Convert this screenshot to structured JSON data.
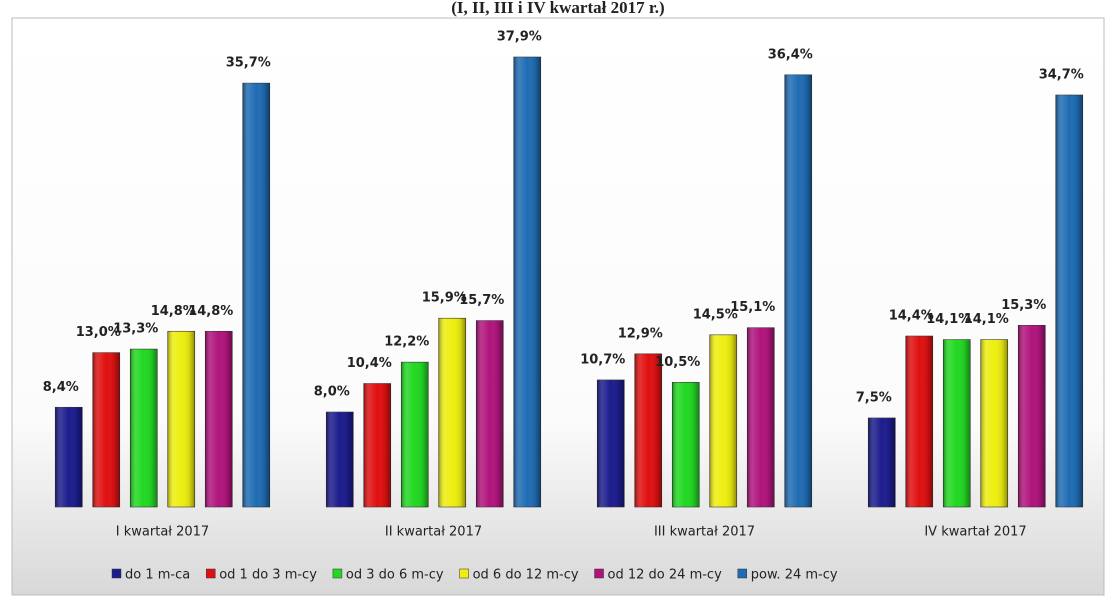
{
  "chart_data": {
    "type": "bar",
    "title": "(I, II, III i IV kwartał 2017 r.)",
    "categories": [
      "I kwartał 2017",
      "II kwartał 2017",
      "III kwartał 2017",
      "IV kwartał 2017"
    ],
    "series": [
      {
        "name": "do 1 m-ca",
        "color": "#1c1c8e",
        "values": [
          8.4,
          8.0,
          10.7,
          7.5
        ],
        "value_labels": [
          "8,4%",
          "8,0%",
          "10,7%",
          "7,5%"
        ]
      },
      {
        "name": "od 1 do 3 m-cy",
        "color": "#e01010",
        "values": [
          13.0,
          10.4,
          12.9,
          14.4
        ],
        "value_labels": [
          "13,0%",
          "10,4%",
          "12,9%",
          "14,4%"
        ]
      },
      {
        "name": "od 3 do 6 m-cy",
        "color": "#22d822",
        "values": [
          13.3,
          12.2,
          10.5,
          14.1
        ],
        "value_labels": [
          "13,3%",
          "12,2%",
          "10,5%",
          "14,1%"
        ]
      },
      {
        "name": "od 6 do 12 m-cy",
        "color": "#eeee10",
        "values": [
          14.8,
          15.9,
          14.5,
          14.1
        ],
        "value_labels": [
          "14,8%",
          "15,9%",
          "14,5%",
          "14,1%"
        ]
      },
      {
        "name": "od 12 do 24 m-cy",
        "color": "#b0147c",
        "values": [
          14.8,
          15.7,
          15.1,
          15.3
        ],
        "value_labels": [
          "14,8%",
          "15,7%",
          "15,1%",
          "15,3%"
        ]
      },
      {
        "name": "pow. 24 m-cy",
        "color": "#1f6cb4",
        "values": [
          35.7,
          37.9,
          36.4,
          34.7
        ],
        "value_labels": [
          "35,7%",
          "37,9%",
          "36,4%",
          "34,7%"
        ]
      }
    ]
  }
}
